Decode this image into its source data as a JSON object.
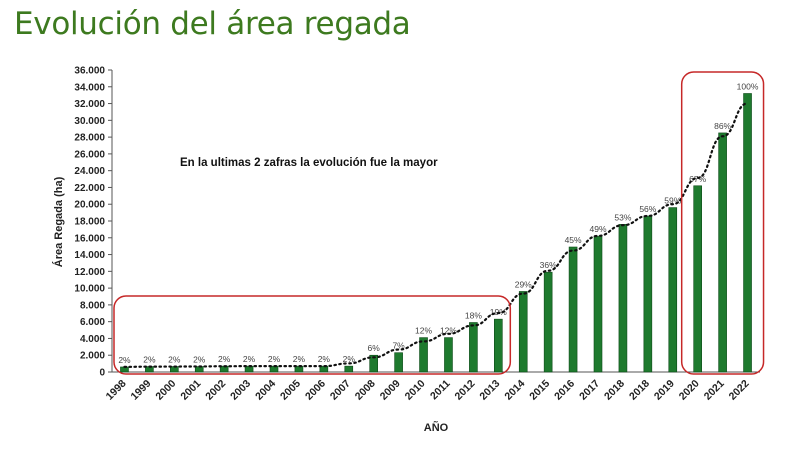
{
  "page": {
    "title": "Evolución del área regada"
  },
  "chart_data": {
    "type": "bar",
    "categories": [
      "1998",
      "1999",
      "2000",
      "2001",
      "2002",
      "2003",
      "2004",
      "2005",
      "2006",
      "2007",
      "2008",
      "2009",
      "2010",
      "2011",
      "2012",
      "2013",
      "2014",
      "2015",
      "2016",
      "2017",
      "2018",
      "2018",
      "2019",
      "2020",
      "2021",
      "2022"
    ],
    "values": [
      600,
      650,
      650,
      650,
      700,
      700,
      700,
      700,
      700,
      700,
      2000,
      2300,
      4100,
      4100,
      5900,
      6300,
      9600,
      11900,
      14900,
      16200,
      17600,
      18600,
      19600,
      22200,
      28500,
      33200
    ],
    "data_labels": [
      "2%",
      "2%",
      "2%",
      "2%",
      "2%",
      "2%",
      "2%",
      "2%",
      "2%",
      "2%",
      "6%",
      "7%",
      "12%",
      "12%",
      "18%",
      "19%",
      "29%",
      "36%",
      "45%",
      "49%",
      "53%",
      "56%",
      "59%",
      "67%",
      "86%",
      "100%"
    ],
    "ylabel": "Área Regada (ha)",
    "xlabel": "AÑO",
    "ylim": [
      0,
      36000
    ],
    "y_ticks": [
      "0",
      "2.000",
      "4.000",
      "6.000",
      "8.000",
      "10.000",
      "12.000",
      "14.000",
      "16.000",
      "18.000",
      "20.000",
      "22.000",
      "24.000",
      "26.000",
      "28.000",
      "30.000",
      "32.000",
      "34.000",
      "36.000"
    ],
    "annotation": "En la ultimas 2 zafras  la evolución fue la mayor",
    "trendline": "dotted",
    "grid": false,
    "colors": {
      "bar": "#1e7a2e",
      "bar_edge": "#0d4a18",
      "highlight_box": "#c62828",
      "trend": "#111111"
    }
  }
}
